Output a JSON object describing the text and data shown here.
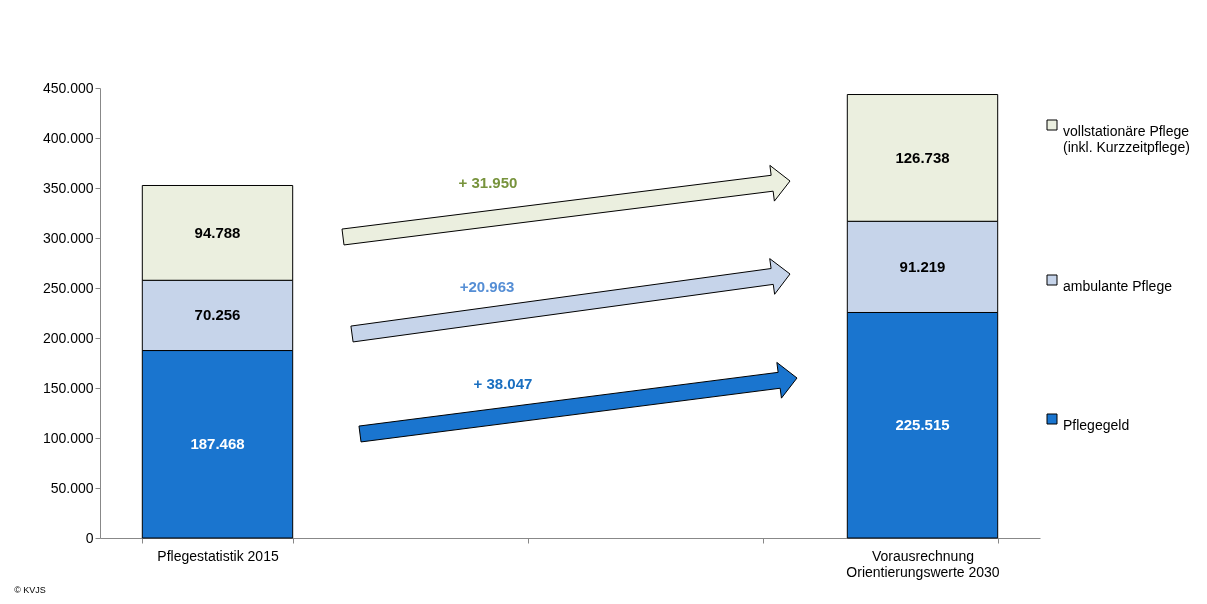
{
  "chart_data": {
    "type": "bar",
    "stacked": true,
    "legend": "right",
    "grid": false,
    "categories": [
      "Pflegestatistik 2015",
      null,
      null,
      "Vorausrechnung\nOrientierungswerte 2030"
    ],
    "series": [
      {
        "name": "Pflegegeld",
        "color": "#1a75cf",
        "values": [
          187468,
          null,
          null,
          225515
        ],
        "value_labels": [
          "187.468",
          null,
          null,
          "225.515"
        ]
      },
      {
        "name": "ambulante Pflege",
        "color": "#c6d4ea",
        "values": [
          70256,
          null,
          null,
          91219
        ],
        "value_labels": [
          "70.256",
          null,
          null,
          "91.219"
        ]
      },
      {
        "name": "vollstationäre Pflege\n(inkl. Kurzzeitpflege)",
        "color": "#ebefdf",
        "values": [
          94788,
          null,
          null,
          126738
        ],
        "value_labels": [
          "94.788",
          null,
          null,
          "126.738"
        ]
      }
    ],
    "ylim": [
      0,
      450000
    ],
    "yticks": [
      {
        "value": 0,
        "label": "0"
      },
      {
        "value": 50000,
        "label": "50.000"
      },
      {
        "value": 100000,
        "label": "100.000"
      },
      {
        "value": 150000,
        "label": "150.000"
      },
      {
        "value": 200000,
        "label": "200.000"
      },
      {
        "value": 250000,
        "label": "250.000"
      },
      {
        "value": 300000,
        "label": "300.000"
      },
      {
        "value": 350000,
        "label": "350.000"
      },
      {
        "value": 400000,
        "label": "400.000"
      },
      {
        "value": 450000,
        "label": "450.000"
      }
    ],
    "annotations": [
      "+ 31.950",
      "+20.963",
      "+ 38.047",
      "© KVJS"
    ]
  }
}
